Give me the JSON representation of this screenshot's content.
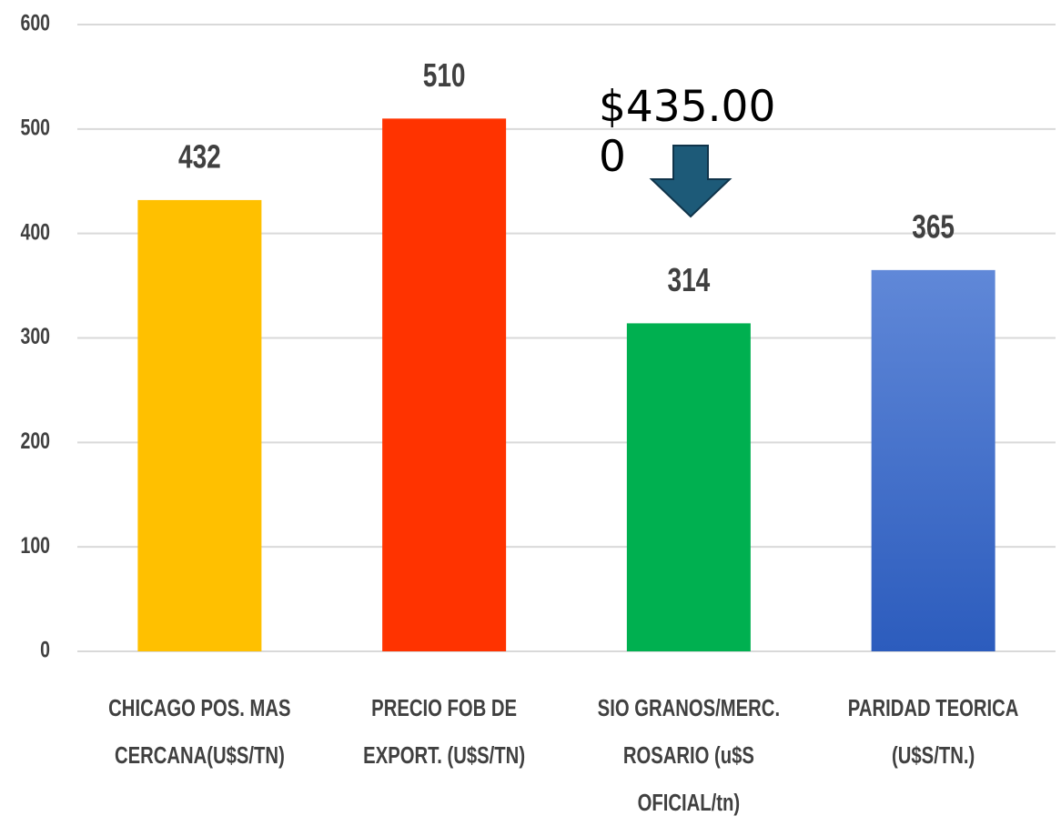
{
  "chart_data": {
    "type": "bar",
    "categories": [
      [
        "CHICAGO POS. MAS",
        "CERCANA(U$S/TN)"
      ],
      [
        "PRECIO FOB DE",
        "EXPORT. (U$S/TN)"
      ],
      [
        "SIO GRANOS/MERC.",
        "ROSARIO  (u$S",
        "OFICIAL/tn)"
      ],
      [
        "PARIDAD TEORICA",
        "(U$S/TN.)"
      ]
    ],
    "values": [
      432,
      510,
      314,
      365
    ],
    "colors": [
      "#ffc000",
      "#ff3300",
      "#00b050",
      "#3a6ccb"
    ],
    "ylim": [
      0,
      600
    ],
    "yticks": [
      0,
      100,
      200,
      300,
      400,
      500,
      600
    ],
    "grid": true,
    "annotation": "$435.000"
  }
}
